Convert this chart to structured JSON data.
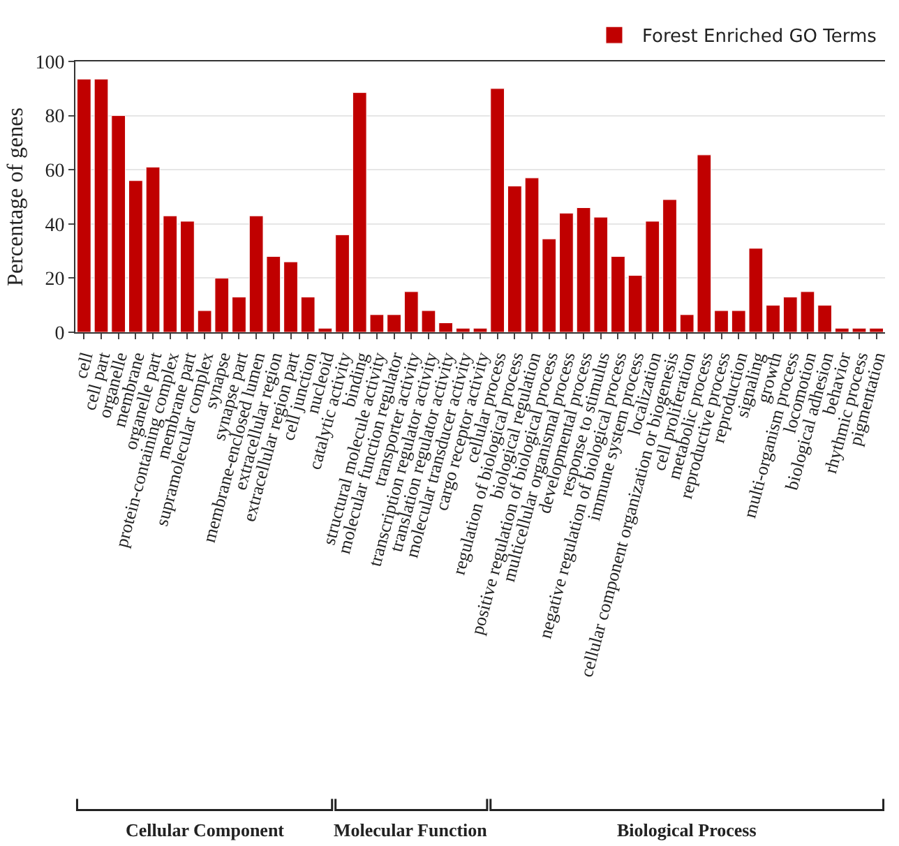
{
  "chart_data": {
    "type": "bar",
    "ylabel": "Percentage of genes",
    "categories": [
      "cell",
      "cell part",
      "organelle",
      "membrane",
      "organelle part",
      "protein-containing complex",
      "membrane part",
      "supramolecular complex",
      "synapse",
      "synapse part",
      "membrane-enclosed lumen",
      "extracellular region",
      "extracellular region part",
      "cell junction",
      "nucleoid",
      "catalytic activity",
      "binding",
      "structural molecule activity",
      "molecular function regulator",
      "transporter activity",
      "transcription regulator activity",
      "translation regulator activity",
      "molecular transducer activity",
      "cargo receptor activity",
      "cellular process",
      "regulation of biological process",
      "biological regulation",
      "positive regulation of biological process",
      "multicellular organismal process",
      "developmental process",
      "response to stimulus",
      "negative regulation of biological process",
      "immune system process",
      "localization",
      "cellular component organization or biogenesis",
      "cell proliferation",
      "metabolic process",
      "reproductive process",
      "reproduction",
      "signaling",
      "growth",
      "multi-organism process",
      "locomotion",
      "biological adhesion",
      "behavior",
      "rhythmic process",
      "pigmentation"
    ],
    "series": [
      {
        "name": "Forest Enriched GO Terms",
        "color": "#c00000",
        "values": [
          93.5,
          93.5,
          80,
          56,
          61,
          43,
          41,
          8,
          20,
          13,
          43,
          28,
          26,
          13,
          1.5,
          36,
          88.5,
          6.5,
          6.5,
          15,
          8,
          3.5,
          1.5,
          1.5,
          90,
          54,
          57,
          34.5,
          44,
          46,
          42.5,
          28,
          21,
          41,
          49,
          6.5,
          65.5,
          8,
          8,
          31,
          10,
          13,
          15,
          10,
          1.5,
          1.5,
          1.5
        ]
      }
    ],
    "ylim": [
      0,
      100
    ],
    "yticks": [
      0,
      20,
      40,
      60,
      80,
      100
    ],
    "grid": "y",
    "legend": "top right",
    "annotations": [
      "Cellular Component",
      "Molecular Function",
      "Biological Process"
    ]
  }
}
